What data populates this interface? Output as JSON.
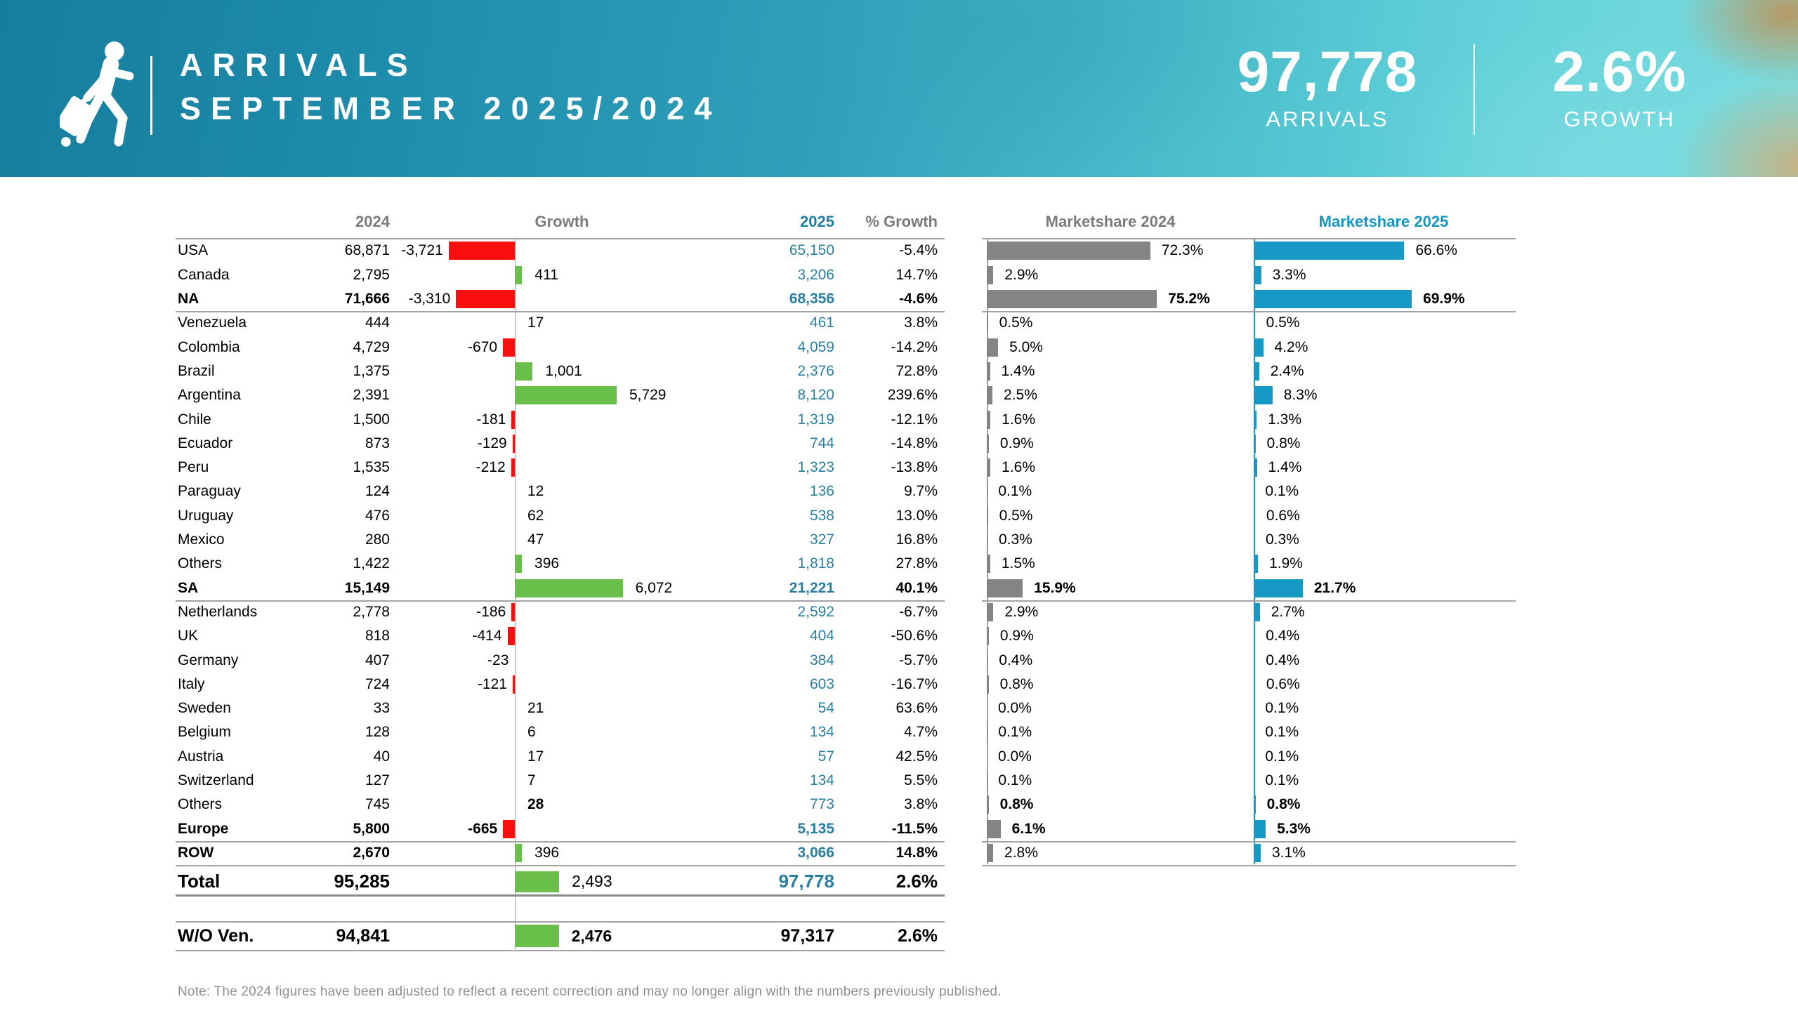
{
  "header": {
    "title_line1": "ARRIVALS",
    "title_line2": "SEPTEMBER 2025/2024",
    "stat_arrivals_value": "97,778",
    "stat_arrivals_label": "ARRIVALS",
    "stat_growth_value": "2.6%",
    "stat_growth_label": "GROWTH",
    "logo_icon": "traveler-with-suitcase-icon"
  },
  "colors": {
    "banner_teal": "#1e8cab",
    "bar_negative_red": "#fb0e0e",
    "bar_positive_green": "#6abf4a",
    "bar_marketshare_2024_gray": "#848484",
    "bar_marketshare_2025_blue": "#1799c6",
    "value_2025_teal": "#2a7fa0",
    "header_2025_teal": "#1f7fa4",
    "header_ms2025_teal": "#1596c4",
    "header_gray": "#7b7b7b",
    "line_gray": "#a3a3a3"
  },
  "chart_data": {
    "type": "table",
    "title": "ARRIVALS SEPTEMBER 2025/2024",
    "columns": [
      "2024",
      "Growth",
      "2025",
      "% Growth",
      "Marketshare 2024",
      "Marketshare 2025"
    ],
    "rows": [
      {
        "label": "USA",
        "v2024": "68,871",
        "growth": -3721,
        "growth_label": "-3,721",
        "v2025": "65,150",
        "pct": "-5.4%",
        "ms2024": 72.3,
        "ms2024_label": "72.3%",
        "ms2025": 66.6,
        "ms2025_label": "66.6%",
        "bold": false,
        "growth_bold": false,
        "ms_bold": false,
        "sep_after": false
      },
      {
        "label": "Canada",
        "v2024": "2,795",
        "growth": 411,
        "growth_label": "411",
        "v2025": "3,206",
        "pct": "14.7%",
        "ms2024": 2.9,
        "ms2024_label": "2.9%",
        "ms2025": 3.3,
        "ms2025_label": "3.3%",
        "bold": false,
        "growth_bold": false,
        "ms_bold": false,
        "sep_after": false
      },
      {
        "label": "NA",
        "v2024": "71,666",
        "growth": -3310,
        "growth_label": "-3,310",
        "v2025": "68,356",
        "pct": "-4.6%",
        "ms2024": 75.2,
        "ms2024_label": "75.2%",
        "ms2025": 69.9,
        "ms2025_label": "69.9%",
        "bold": true,
        "growth_bold": false,
        "ms_bold": true,
        "sep_after": true
      },
      {
        "label": "Venezuela",
        "v2024": "444",
        "growth": 17,
        "growth_label": "17",
        "v2025": "461",
        "pct": "3.8%",
        "ms2024": 0.5,
        "ms2024_label": "0.5%",
        "ms2025": 0.5,
        "ms2025_label": "0.5%",
        "bold": false,
        "growth_bold": false,
        "ms_bold": false,
        "sep_after": false
      },
      {
        "label": "Colombia",
        "v2024": "4,729",
        "growth": -670,
        "growth_label": "-670",
        "v2025": "4,059",
        "pct": "-14.2%",
        "ms2024": 5.0,
        "ms2024_label": "5.0%",
        "ms2025": 4.2,
        "ms2025_label": "4.2%",
        "bold": false,
        "growth_bold": false,
        "ms_bold": false,
        "sep_after": false
      },
      {
        "label": "Brazil",
        "v2024": "1,375",
        "growth": 1001,
        "growth_label": "1,001",
        "v2025": "2,376",
        "pct": "72.8%",
        "ms2024": 1.4,
        "ms2024_label": "1.4%",
        "ms2025": 2.4,
        "ms2025_label": "2.4%",
        "bold": false,
        "growth_bold": false,
        "ms_bold": false,
        "sep_after": false
      },
      {
        "label": "Argentina",
        "v2024": "2,391",
        "growth": 5729,
        "growth_label": "5,729",
        "v2025": "8,120",
        "pct": "239.6%",
        "ms2024": 2.5,
        "ms2024_label": "2.5%",
        "ms2025": 8.3,
        "ms2025_label": "8.3%",
        "bold": false,
        "growth_bold": false,
        "ms_bold": false,
        "sep_after": false
      },
      {
        "label": "Chile",
        "v2024": "1,500",
        "growth": -181,
        "growth_label": "-181",
        "v2025": "1,319",
        "pct": "-12.1%",
        "ms2024": 1.6,
        "ms2024_label": "1.6%",
        "ms2025": 1.3,
        "ms2025_label": "1.3%",
        "bold": false,
        "growth_bold": false,
        "ms_bold": false,
        "sep_after": false
      },
      {
        "label": "Ecuador",
        "v2024": "873",
        "growth": -129,
        "growth_label": "-129",
        "v2025": "744",
        "pct": "-14.8%",
        "ms2024": 0.9,
        "ms2024_label": "0.9%",
        "ms2025": 0.8,
        "ms2025_label": "0.8%",
        "bold": false,
        "growth_bold": false,
        "ms_bold": false,
        "sep_after": false
      },
      {
        "label": "Peru",
        "v2024": "1,535",
        "growth": -212,
        "growth_label": "-212",
        "v2025": "1,323",
        "pct": "-13.8%",
        "ms2024": 1.6,
        "ms2024_label": "1.6%",
        "ms2025": 1.4,
        "ms2025_label": "1.4%",
        "bold": false,
        "growth_bold": false,
        "ms_bold": false,
        "sep_after": false
      },
      {
        "label": "Paraguay",
        "v2024": "124",
        "growth": 12,
        "growth_label": "12",
        "v2025": "136",
        "pct": "9.7%",
        "ms2024": 0.1,
        "ms2024_label": "0.1%",
        "ms2025": 0.1,
        "ms2025_label": "0.1%",
        "bold": false,
        "growth_bold": false,
        "ms_bold": false,
        "sep_after": false
      },
      {
        "label": "Uruguay",
        "v2024": "476",
        "growth": 62,
        "growth_label": "62",
        "v2025": "538",
        "pct": "13.0%",
        "ms2024": 0.5,
        "ms2024_label": "0.5%",
        "ms2025": 0.6,
        "ms2025_label": "0.6%",
        "bold": false,
        "growth_bold": false,
        "ms_bold": false,
        "sep_after": false
      },
      {
        "label": "Mexico",
        "v2024": "280",
        "growth": 47,
        "growth_label": "47",
        "v2025": "327",
        "pct": "16.8%",
        "ms2024": 0.3,
        "ms2024_label": "0.3%",
        "ms2025": 0.3,
        "ms2025_label": "0.3%",
        "bold": false,
        "growth_bold": false,
        "ms_bold": false,
        "sep_after": false
      },
      {
        "label": "Others",
        "v2024": "1,422",
        "growth": 396,
        "growth_label": "396",
        "v2025": "1,818",
        "pct": "27.8%",
        "ms2024": 1.5,
        "ms2024_label": "1.5%",
        "ms2025": 1.9,
        "ms2025_label": "1.9%",
        "bold": false,
        "growth_bold": false,
        "ms_bold": false,
        "sep_after": false
      },
      {
        "label": "SA",
        "v2024": "15,149",
        "growth": 6072,
        "growth_label": "6,072",
        "v2025": "21,221",
        "pct": "40.1%",
        "ms2024": 15.9,
        "ms2024_label": "15.9%",
        "ms2025": 21.7,
        "ms2025_label": "21.7%",
        "bold": true,
        "growth_bold": false,
        "ms_bold": true,
        "sep_after": true
      },
      {
        "label": "Netherlands",
        "v2024": "2,778",
        "growth": -186,
        "growth_label": "-186",
        "v2025": "2,592",
        "pct": "-6.7%",
        "ms2024": 2.9,
        "ms2024_label": "2.9%",
        "ms2025": 2.7,
        "ms2025_label": "2.7%",
        "bold": false,
        "growth_bold": false,
        "ms_bold": false,
        "sep_after": false
      },
      {
        "label": "UK",
        "v2024": "818",
        "growth": -414,
        "growth_label": "-414",
        "v2025": "404",
        "pct": "-50.6%",
        "ms2024": 0.9,
        "ms2024_label": "0.9%",
        "ms2025": 0.4,
        "ms2025_label": "0.4%",
        "bold": false,
        "growth_bold": false,
        "ms_bold": false,
        "sep_after": false
      },
      {
        "label": "Germany",
        "v2024": "407",
        "growth": -23,
        "growth_label": "-23",
        "v2025": "384",
        "pct": "-5.7%",
        "ms2024": 0.4,
        "ms2024_label": "0.4%",
        "ms2025": 0.4,
        "ms2025_label": "0.4%",
        "bold": false,
        "growth_bold": false,
        "ms_bold": false,
        "sep_after": false
      },
      {
        "label": "Italy",
        "v2024": "724",
        "growth": -121,
        "growth_label": "-121",
        "v2025": "603",
        "pct": "-16.7%",
        "ms2024": 0.8,
        "ms2024_label": "0.8%",
        "ms2025": 0.6,
        "ms2025_label": "0.6%",
        "bold": false,
        "growth_bold": false,
        "ms_bold": false,
        "sep_after": false
      },
      {
        "label": "Sweden",
        "v2024": "33",
        "growth": 21,
        "growth_label": "21",
        "v2025": "54",
        "pct": "63.6%",
        "ms2024": 0.0,
        "ms2024_label": "0.0%",
        "ms2025": 0.1,
        "ms2025_label": "0.1%",
        "bold": false,
        "growth_bold": false,
        "ms_bold": false,
        "sep_after": false
      },
      {
        "label": "Belgium",
        "v2024": "128",
        "growth": 6,
        "growth_label": "6",
        "v2025": "134",
        "pct": "4.7%",
        "ms2024": 0.1,
        "ms2024_label": "0.1%",
        "ms2025": 0.1,
        "ms2025_label": "0.1%",
        "bold": false,
        "growth_bold": false,
        "ms_bold": false,
        "sep_after": false
      },
      {
        "label": "Austria",
        "v2024": "40",
        "growth": 17,
        "growth_label": "17",
        "v2025": "57",
        "pct": "42.5%",
        "ms2024": 0.0,
        "ms2024_label": "0.0%",
        "ms2025": 0.1,
        "ms2025_label": "0.1%",
        "bold": false,
        "growth_bold": false,
        "ms_bold": false,
        "sep_after": false
      },
      {
        "label": "Switzerland",
        "v2024": "127",
        "growth": 7,
        "growth_label": "7",
        "v2025": "134",
        "pct": "5.5%",
        "ms2024": 0.1,
        "ms2024_label": "0.1%",
        "ms2025": 0.1,
        "ms2025_label": "0.1%",
        "bold": false,
        "growth_bold": false,
        "ms_bold": false,
        "sep_after": false
      },
      {
        "label": "Others",
        "v2024": "745",
        "growth": 28,
        "growth_label": "28",
        "v2025": "773",
        "pct": "3.8%",
        "ms2024": 0.8,
        "ms2024_label": "0.8%",
        "ms2025": 0.8,
        "ms2025_label": "0.8%",
        "bold": false,
        "growth_bold": true,
        "ms_bold": true,
        "sep_after": false
      },
      {
        "label": "Europe",
        "v2024": "5,800",
        "growth": -665,
        "growth_label": "-665",
        "v2025": "5,135",
        "pct": "-11.5%",
        "ms2024": 6.1,
        "ms2024_label": "6.1%",
        "ms2025": 5.3,
        "ms2025_label": "5.3%",
        "bold": true,
        "growth_bold": true,
        "ms_bold": true,
        "sep_after": true
      },
      {
        "label": "ROW",
        "v2024": "2,670",
        "growth": 396,
        "growth_label": "396",
        "v2025": "3,066",
        "pct": "14.8%",
        "ms2024": 2.8,
        "ms2024_label": "2.8%",
        "ms2025": 3.1,
        "ms2025_label": "3.1%",
        "bold": true,
        "growth_bold": false,
        "ms_bold": false,
        "sep_after": true
      }
    ],
    "footer_rows": [
      {
        "label": "Total",
        "v2024": "95,285",
        "growth": 2493,
        "growth_label": "2,493",
        "v2025": "97,778",
        "pct": "2.6%",
        "growth_bold": false,
        "v2025_teal": true
      },
      {
        "label": "W/O Ven.",
        "v2024": "94,841",
        "growth": 2476,
        "growth_label": "2,476",
        "v2025": "97,317",
        "pct": "2.6%",
        "growth_bold": true,
        "v2025_teal": false
      }
    ]
  },
  "note": "Note: The 2024 figures have been adjusted to reflect a recent correction and may no longer align with the numbers previously published."
}
